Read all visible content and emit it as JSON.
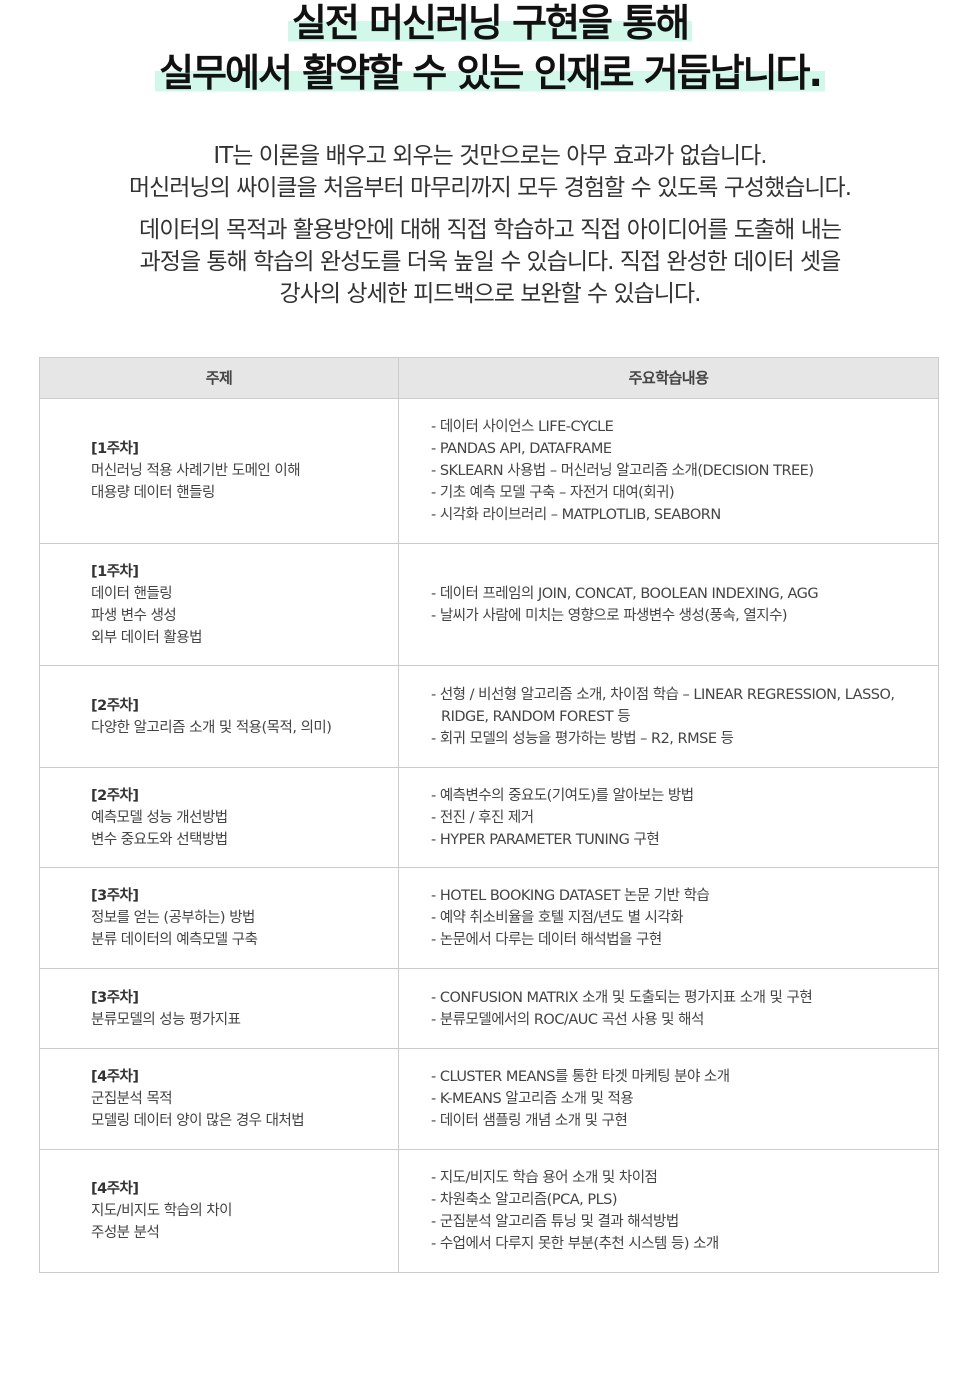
{
  "title": {
    "line1": "실전 머신러닝 구현을 통해",
    "line2": "실무에서 활약할 수 있는 인재로 거듭납니다.",
    "highlight_color": "#d2f8ea"
  },
  "intro": {
    "p1": [
      "IT는 이론을 배우고 외우는 것만으로는 아무 효과가 없습니다.",
      "머신러닝의 싸이클을 처음부터 마무리까지 모두 경험할 수 있도록 구성했습니다."
    ],
    "p2": [
      "데이터의 목적과 활용방안에 대해 직접 학습하고 직접 아이디어를 도출해 내는",
      "과정을 통해 학습의 완성도를 더욱 높일 수 있습니다. 직접 완성한 데이터 셋을",
      "강사의 상세한 피드백으로 보완할 수 있습니다."
    ]
  },
  "table": {
    "headers": [
      "주제",
      "주요학습내용"
    ],
    "rows": [
      {
        "week": "[1주차]",
        "topics": [
          "머신러닝 적용 사례기반 도메인 이해",
          "대용량 데이터 핸들링"
        ],
        "contents": [
          "- 데이터 사이언스 LIFE-CYCLE",
          "- PANDAS API, DATAFRAME",
          "- SKLEARN 사용법 – 머신러닝 알고리즘 소개(DECISION TREE)",
          "- 기초 예측 모델 구축 – 자전거 대여(회귀)",
          "- 시각화 라이브러리 – MATPLOTLIB, SEABORN"
        ]
      },
      {
        "week": "[1주차]",
        "topics": [
          "데이터 핸들링",
          "파생 변수 생성",
          "외부 데이터 활용법"
        ],
        "contents": [
          "- 데이터 프레임의 JOIN, CONCAT, BOOLEAN INDEXING, AGG",
          "- 날씨가 사람에 미치는 영향으로 파생변수 생성(풍속, 열지수)"
        ]
      },
      {
        "week": "[2주차]",
        "topics": [
          "다양한 알고리즘 소개 및 적용(목적, 의미)"
        ],
        "contents": [
          "- 선형 / 비선형 알고리즘 소개, 차이점 학습 – LINEAR REGRESSION, LASSO, RIDGE, RANDOM FOREST 등",
          "- 회귀 모델의 성능을 평가하는 방법 – R2, RMSE 등"
        ]
      },
      {
        "week": "[2주차]",
        "topics": [
          "예측모델 성능 개선방법",
          "변수 중요도와 선택방법"
        ],
        "contents": [
          "- 예측변수의 중요도(기여도)를 알아보는 방법",
          "- 전진 / 후진 제거",
          "- HYPER PARAMETER TUNING 구현"
        ]
      },
      {
        "week": "[3주차]",
        "topics": [
          "정보를 얻는 (공부하는) 방법",
          "분류 데이터의 예측모델 구축"
        ],
        "contents": [
          "- HOTEL BOOKING DATASET 논문 기반 학습",
          "- 예약 취소비율을 호텔 지점/년도 별 시각화",
          "- 논문에서 다루는 데이터 해석법을 구현"
        ]
      },
      {
        "week": "[3주차]",
        "topics": [
          "분류모델의 성능 평가지표"
        ],
        "contents": [
          "- CONFUSION MATRIX 소개 및 도출되는 평가지표 소개 및 구현",
          "- 분류모델에서의 ROC/AUC 곡선 사용 및 해석"
        ]
      },
      {
        "week": "[4주차]",
        "topics": [
          "군집분석 목적",
          "모델링 데이터 양이 많은 경우 대처법"
        ],
        "contents": [
          "- CLUSTER MEANS를 통한 타겟 마케팅 분야 소개",
          "- K-MEANS 알고리즘 소개 및 적용",
          "- 데이터 샘플링 개념 소개 및 구현"
        ]
      },
      {
        "week": "[4주차]",
        "topics": [
          "지도/비지도 학습의 차이",
          "주성분 분석"
        ],
        "contents": [
          "- 지도/비지도 학습 용어 소개 및 차이점",
          "- 차원축소 알고리즘(PCA, PLS)",
          "- 군집분석 알고리즘 튜닝 및 결과 해석방법",
          "- 수업에서 다루지 못한 부분(추천 시스템 등) 소개"
        ]
      }
    ]
  }
}
